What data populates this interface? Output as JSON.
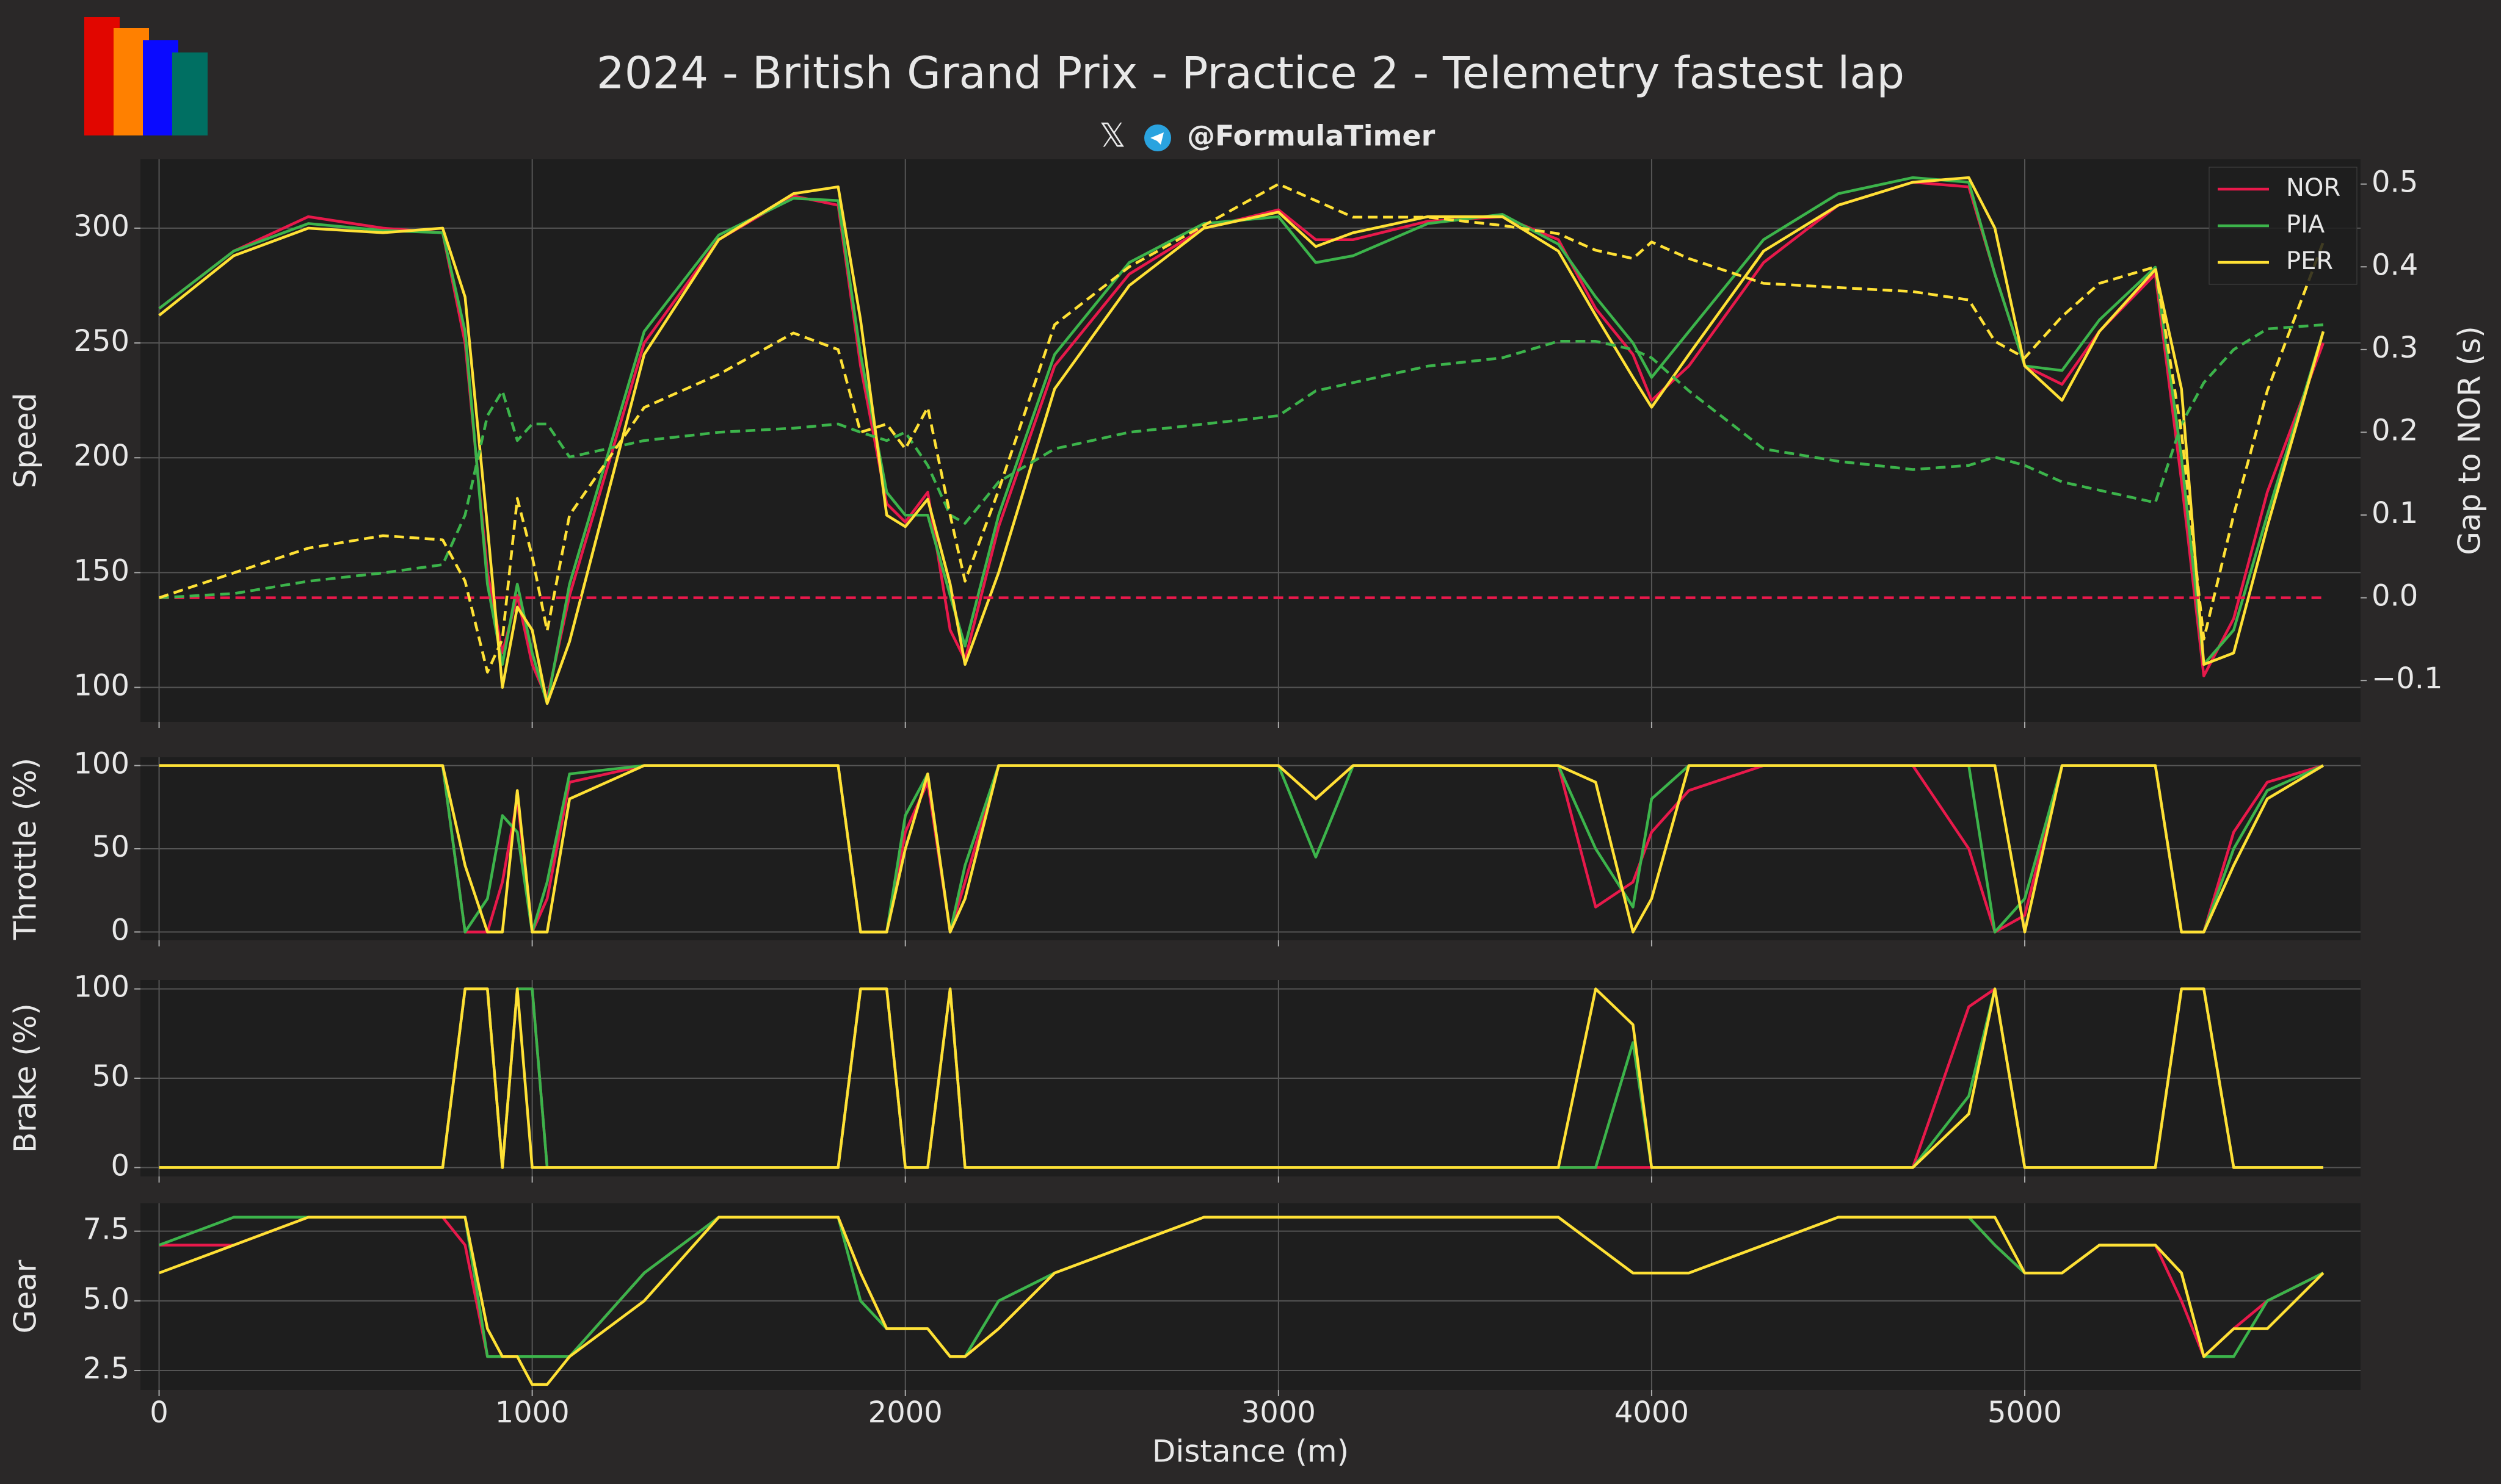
{
  "title": "2024 - British Grand Prix - Practice 2 - Telemetry fastest lap",
  "handle": "@FormulaTimer",
  "chart_data": {
    "type": "line",
    "xlabel": "Distance (m)",
    "x": [
      0,
      200,
      400,
      600,
      760,
      820,
      880,
      920,
      960,
      1000,
      1040,
      1100,
      1300,
      1500,
      1700,
      1820,
      1880,
      1950,
      2000,
      2060,
      2120,
      2160,
      2250,
      2400,
      2600,
      2800,
      3000,
      3100,
      3200,
      3400,
      3600,
      3750,
      3850,
      3950,
      4000,
      4100,
      4300,
      4500,
      4700,
      4850,
      4920,
      5000,
      5100,
      5200,
      5350,
      5420,
      5480,
      5560,
      5650,
      5800
    ],
    "xlim": [
      -50,
      5900
    ],
    "xticks": [
      0,
      1000,
      2000,
      3000,
      4000,
      5000
    ],
    "grid": true,
    "legend": "upper right",
    "panels": [
      {
        "ylabel": "Speed",
        "ylim": [
          85,
          330
        ],
        "yticks": [
          100,
          150,
          200,
          250,
          300
        ],
        "y2label": "Gap to NOR (s)",
        "y2lim": [
          -0.15,
          0.53
        ],
        "y2ticks": [
          {
            "value": -0.1,
            "label": "−0.1"
          },
          {
            "value": 0,
            "label": "0.0"
          },
          0.1,
          0.2,
          0.3,
          0.4,
          0.5
        ],
        "series": [
          {
            "name": "NOR",
            "color": "#e8194b",
            "values": [
              265,
              290,
              305,
              300,
              298,
              250,
              150,
              115,
              140,
              110,
              95,
              140,
              250,
              295,
              314,
              310,
              240,
              180,
              172,
              185,
              125,
              112,
              170,
              240,
              280,
              300,
              308,
              295,
              295,
              303,
              305,
              295,
              265,
              245,
              225,
              240,
              285,
              310,
              320,
              318,
              280,
              240,
              232,
              255,
              280,
              190,
              105,
              130,
              185,
              250
            ]
          },
          {
            "name": "PIA",
            "color": "#3cb44b",
            "values": [
              265,
              290,
              302,
              299,
              298,
              255,
              145,
              110,
              145,
              115,
              93,
              145,
              255,
              297,
              313,
              312,
              245,
              185,
              175,
              175,
              140,
              118,
              175,
              245,
              285,
              302,
              305,
              285,
              288,
              302,
              306,
              293,
              270,
              250,
              235,
              255,
              295,
              315,
              322,
              320,
              280,
              240,
              238,
              260,
              283,
              200,
              110,
              125,
              175,
              255
            ]
          },
          {
            "name": "PER",
            "color": "#ffe135",
            "values": [
              262,
              288,
              300,
              298,
              300,
              270,
              170,
              100,
              135,
              125,
              93,
              120,
              245,
              295,
              315,
              318,
              260,
              175,
              170,
              182,
              145,
              110,
              150,
              230,
              275,
              300,
              307,
              292,
              298,
              305,
              305,
              290,
              262,
              235,
              222,
              245,
              290,
              310,
              320,
              322,
              300,
              240,
              225,
              255,
              282,
              230,
              110,
              115,
              170,
              255
            ]
          },
          {
            "name": "NOR",
            "color": "#e8194b",
            "axis": "y2",
            "dashed": true,
            "values": [
              0,
              0,
              0,
              0,
              0,
              0,
              0,
              0,
              0,
              0,
              0,
              0,
              0,
              0,
              0,
              0,
              0,
              0,
              0,
              0,
              0,
              0,
              0,
              0,
              0,
              0,
              0,
              0,
              0,
              0,
              0,
              0,
              0,
              0,
              0,
              0,
              0,
              0,
              0,
              0,
              0,
              0,
              0,
              0,
              0,
              0,
              0,
              0,
              0,
              0
            ]
          },
          {
            "name": "PIA",
            "color": "#3cb44b",
            "axis": "y2",
            "dashed": true,
            "values": [
              0,
              0.005,
              0.02,
              0.03,
              0.04,
              0.1,
              0.22,
              0.25,
              0.19,
              0.21,
              0.21,
              0.17,
              0.19,
              0.2,
              0.205,
              0.21,
              0.2,
              0.19,
              0.2,
              0.16,
              0.1,
              0.09,
              0.14,
              0.18,
              0.2,
              0.21,
              0.22,
              0.25,
              0.26,
              0.28,
              0.29,
              0.31,
              0.31,
              0.3,
              0.29,
              0.25,
              0.18,
              0.165,
              0.155,
              0.16,
              0.17,
              0.16,
              0.14,
              0.13,
              0.115,
              0.21,
              0.26,
              0.3,
              0.325,
              0.33
            ]
          },
          {
            "name": "PER",
            "color": "#ffe135",
            "axis": "y2",
            "dashed": true,
            "values": [
              0,
              0.03,
              0.06,
              0.075,
              0.07,
              0.02,
              -0.09,
              -0.05,
              0.12,
              0.05,
              -0.04,
              0.1,
              0.23,
              0.27,
              0.32,
              0.3,
              0.2,
              0.21,
              0.18,
              0.23,
              0.1,
              0.02,
              0.13,
              0.33,
              0.4,
              0.45,
              0.5,
              0.48,
              0.46,
              0.46,
              0.45,
              0.44,
              0.42,
              0.41,
              0.43,
              0.41,
              0.38,
              0.375,
              0.37,
              0.36,
              0.31,
              0.29,
              0.34,
              0.38,
              0.4,
              0.2,
              -0.05,
              0.1,
              0.25,
              0.43
            ]
          }
        ]
      },
      {
        "ylabel": "Throttle (%)",
        "ylim": [
          -5,
          105
        ],
        "yticks": [
          0,
          50,
          100
        ],
        "series": [
          {
            "name": "NOR",
            "color": "#e8194b",
            "values": [
              100,
              100,
              100,
              100,
              100,
              0,
              0,
              30,
              80,
              0,
              20,
              90,
              100,
              100,
              100,
              100,
              0,
              0,
              60,
              90,
              0,
              30,
              100,
              100,
              100,
              100,
              100,
              80,
              100,
              100,
              100,
              100,
              15,
              30,
              60,
              85,
              100,
              100,
              100,
              50,
              0,
              10,
              100,
              100,
              100,
              0,
              0,
              60,
              90,
              100
            ]
          },
          {
            "name": "PIA",
            "color": "#3cb44b",
            "values": [
              100,
              100,
              100,
              100,
              100,
              0,
              20,
              70,
              60,
              0,
              30,
              95,
              100,
              100,
              100,
              100,
              0,
              0,
              70,
              95,
              0,
              40,
              100,
              100,
              100,
              100,
              100,
              45,
              100,
              100,
              100,
              100,
              50,
              15,
              80,
              100,
              100,
              100,
              100,
              100,
              0,
              20,
              100,
              100,
              100,
              0,
              0,
              50,
              85,
              100
            ]
          },
          {
            "name": "PER",
            "color": "#ffe135",
            "values": [
              100,
              100,
              100,
              100,
              100,
              40,
              0,
              0,
              85,
              0,
              0,
              80,
              100,
              100,
              100,
              100,
              0,
              0,
              50,
              95,
              0,
              20,
              100,
              100,
              100,
              100,
              100,
              80,
              100,
              100,
              100,
              100,
              90,
              0,
              20,
              100,
              100,
              100,
              100,
              100,
              100,
              0,
              100,
              100,
              100,
              0,
              0,
              40,
              80,
              100
            ]
          }
        ]
      },
      {
        "ylabel": "Brake (%)",
        "ylim": [
          -5,
          105
        ],
        "yticks": [
          0,
          50,
          100
        ],
        "series": [
          {
            "name": "NOR",
            "color": "#e8194b",
            "values": [
              0,
              0,
              0,
              0,
              0,
              100,
              100,
              0,
              100,
              100,
              0,
              0,
              0,
              0,
              0,
              0,
              100,
              100,
              0,
              0,
              100,
              0,
              0,
              0,
              0,
              0,
              0,
              0,
              0,
              0,
              0,
              0,
              0,
              0,
              0,
              0,
              0,
              0,
              0,
              90,
              100,
              0,
              0,
              0,
              0,
              100,
              100,
              0,
              0,
              0
            ]
          },
          {
            "name": "PIA",
            "color": "#3cb44b",
            "values": [
              0,
              0,
              0,
              0,
              0,
              100,
              100,
              0,
              100,
              100,
              0,
              0,
              0,
              0,
              0,
              0,
              100,
              100,
              0,
              0,
              100,
              0,
              0,
              0,
              0,
              0,
              0,
              0,
              0,
              0,
              0,
              0,
              0,
              70,
              0,
              0,
              0,
              0,
              0,
              40,
              100,
              0,
              0,
              0,
              0,
              100,
              100,
              0,
              0,
              0
            ]
          },
          {
            "name": "PER",
            "color": "#ffe135",
            "values": [
              0,
              0,
              0,
              0,
              0,
              100,
              100,
              0,
              100,
              0,
              0,
              0,
              0,
              0,
              0,
              0,
              100,
              100,
              0,
              0,
              100,
              0,
              0,
              0,
              0,
              0,
              0,
              0,
              0,
              0,
              0,
              0,
              100,
              80,
              0,
              0,
              0,
              0,
              0,
              30,
              100,
              0,
              0,
              0,
              0,
              100,
              100,
              0,
              0,
              0
            ]
          }
        ]
      },
      {
        "ylabel": "Gear",
        "ylim": [
          1.8,
          8.5
        ],
        "yticks": [
          2.5,
          {
            "value": 5,
            "label": "5.0"
          },
          7.5
        ],
        "series": [
          {
            "name": "NOR",
            "color": "#e8194b",
            "values": [
              7,
              7,
              8,
              8,
              8,
              7,
              3,
              3,
              3,
              3,
              3,
              3,
              6,
              8,
              8,
              8,
              6,
              4,
              4,
              4,
              3,
              3,
              4,
              6,
              7,
              8,
              8,
              8,
              8,
              8,
              8,
              8,
              7,
              6,
              6,
              6,
              7,
              8,
              8,
              8,
              7,
              6,
              6,
              7,
              7,
              5,
              3,
              4,
              5,
              6
            ]
          },
          {
            "name": "PIA",
            "color": "#3cb44b",
            "values": [
              7,
              8,
              8,
              8,
              8,
              8,
              3,
              3,
              3,
              3,
              3,
              3,
              6,
              8,
              8,
              8,
              5,
              4,
              4,
              4,
              3,
              3,
              5,
              6,
              7,
              8,
              8,
              8,
              8,
              8,
              8,
              8,
              7,
              6,
              6,
              6,
              7,
              8,
              8,
              8,
              7,
              6,
              6,
              7,
              7,
              6,
              3,
              3,
              5,
              6
            ]
          },
          {
            "name": "PER",
            "color": "#ffe135",
            "values": [
              6,
              7,
              8,
              8,
              8,
              8,
              4,
              3,
              3,
              2,
              2,
              3,
              5,
              8,
              8,
              8,
              6,
              4,
              4,
              4,
              3,
              3,
              4,
              6,
              7,
              8,
              8,
              8,
              8,
              8,
              8,
              8,
              7,
              6,
              6,
              6,
              7,
              8,
              8,
              8,
              8,
              6,
              6,
              7,
              7,
              6,
              3,
              4,
              4,
              6
            ]
          }
        ]
      }
    ]
  }
}
